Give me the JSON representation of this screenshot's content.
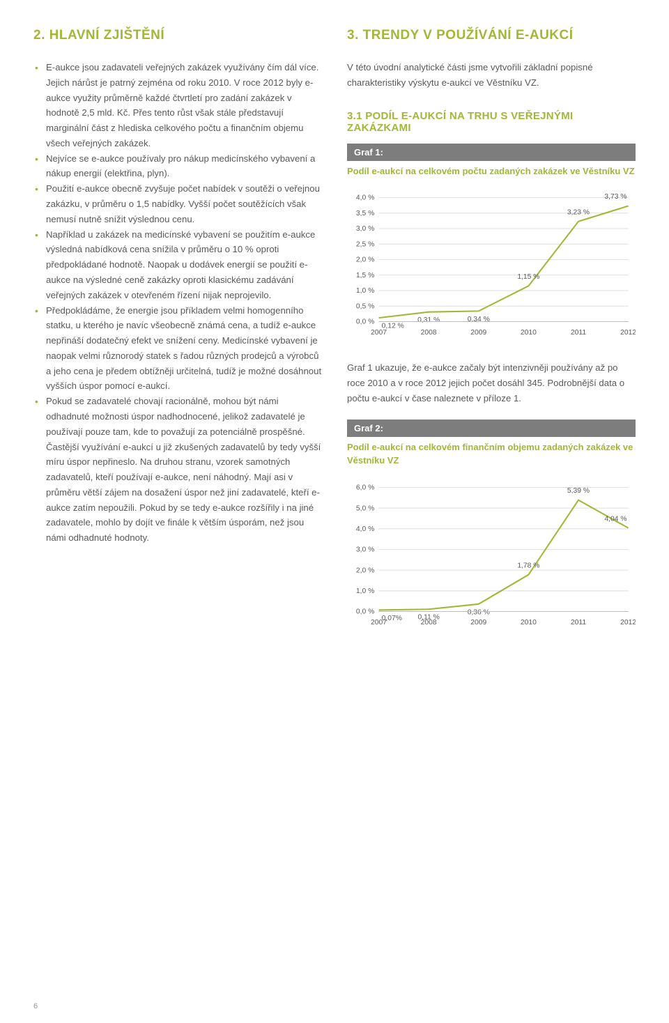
{
  "left": {
    "title": "2. HLAVNÍ ZJIŠTĚNÍ",
    "bullets": [
      "E-aukce jsou zadavateli veřejných zakázek využívány čím dál více. Jejich nárůst je patrný zejména od roku 2010. V roce 2012 byly e-aukce využity průměrně každé čtvrtletí pro zadání zakázek v hodnotě 2,5 mld. Kč. Přes tento růst však stále představují marginální část z hlediska celkového počtu a finančním objemu všech veřejných zakázek.",
      "Nejvíce se e-aukce používaly pro nákup medicínského vybavení a nákup energií (elektřina, plyn).",
      "Použití e-aukce obecně zvyšuje počet nabídek v soutěži o veřejnou zakázku, v průměru o 1,5 nabídky. Vyšší počet soutěžících však nemusí nutně snížit výslednou cenu.",
      "Například u zakázek na medicínské vybavení se použitím e-aukce výsledná nabídková cena snížila v průměru o 10 % oproti předpokládané hodnotě. Naopak u dodávek energií se použití e-aukce na výsledné ceně zakázky oproti klasickému zadávání veřejných zakázek v otevřeném řízení nijak neprojevilo.",
      "Předpokládáme, že energie jsou příkladem velmi homogenního statku, u kterého je navíc všeobecně známá cena, a tudíž e-aukce nepřináší dodatečný efekt ve snížení ceny. Medicínské vybavení je naopak velmi různorodý statek s řadou různých prodejců a výrobců a jeho cena je předem obtížněji určitelná, tudíž je možné dosáhnout vyšších úspor pomocí e-aukcí.",
      "Pokud se zadavatelé chovají racionálně, mohou být námi odhadnuté možnosti úspor nadhodnocené, jelikož zadavatelé je používají pouze tam, kde to považují za potenciálně prospěšné. Častější využívání e-aukcí u již zkušených zadavatelů by tedy vyšší míru úspor nepřineslo. Na druhou stranu, vzorek samotných zadavatelů, kteří používají e-aukce, není náhodný. Mají asi v průměru větší zájem na dosažení úspor než jiní zadavatelé, kteří e-aukce zatím nepoužili. Pokud by se tedy e-aukce rozšířily i na jiné zadavatele, mohlo by dojít ve finále k větším úsporám, než jsou námi odhadnuté hodnoty."
    ]
  },
  "right": {
    "title": "3. TRENDY V POUŽÍVÁNÍ E-AUKCÍ",
    "intro": "V této úvodní analytické části jsme vytvořili základní popisné charakteristiky výskytu e-aukcí ve Věstníku VZ.",
    "subsection": "3.1 PODÍL E-AUKCÍ NA TRHU S VEŘEJNÝMI ZAKÁZKAMI",
    "graf1": {
      "bar": "Graf 1:",
      "caption": "Podíl e-aukcí na celkovém počtu zadaných zakázek ve Věstníku VZ",
      "type": "line",
      "categories": [
        "2007",
        "2008",
        "2009",
        "2010",
        "2011",
        "2012"
      ],
      "values": [
        0.12,
        0.31,
        0.34,
        1.15,
        3.23,
        3.73
      ],
      "value_labels": [
        "0,12 %",
        "0,31 %",
        "0,34 %",
        "1,15 %",
        "3,23 %",
        "3,73 %"
      ],
      "ylim": [
        0,
        4.0
      ],
      "ytick_step": 0.5,
      "ytick_labels": [
        "0,0 %",
        "0,5 %",
        "1,0 %",
        "1,5 %",
        "2,0 %",
        "2,5 %",
        "3,0 %",
        "3,5 %",
        "4,0 %"
      ],
      "line_color": "#9fb836",
      "grid_color": "#dddddd",
      "background_color": "#ffffff",
      "label_fontsize": 10,
      "line_width": 2
    },
    "after_graf1": "Graf 1 ukazuje, že e-aukce začaly být intenzivněji používány až po roce 2010 a v roce 2012 jejich počet dosáhl 345. Podrobnější data o počtu e-aukcí v čase naleznete v příloze 1.",
    "graf2": {
      "bar": "Graf 2:",
      "caption": "Podíl e-aukcí na celkovém finančním objemu zadaných zakázek ve Věstníku VZ",
      "type": "line",
      "categories": [
        "2007",
        "2008",
        "2009",
        "2010",
        "2011",
        "2012"
      ],
      "values": [
        0.07,
        0.11,
        0.36,
        1.78,
        5.39,
        4.04
      ],
      "value_labels": [
        "0,07%",
        "0,11 %",
        "0,36 %",
        "1,78 %",
        "5,39 %",
        "4,04 %"
      ],
      "ylim": [
        0,
        6.0
      ],
      "ytick_step": 1.0,
      "ytick_labels": [
        "0,0 %",
        "1,0 %",
        "2,0 %",
        "3,0 %",
        "4,0 %",
        "5,0 %",
        "6,0 %"
      ],
      "line_color": "#9fb836",
      "grid_color": "#dddddd",
      "background_color": "#ffffff",
      "label_fontsize": 10,
      "line_width": 2
    }
  },
  "page_number": "6"
}
